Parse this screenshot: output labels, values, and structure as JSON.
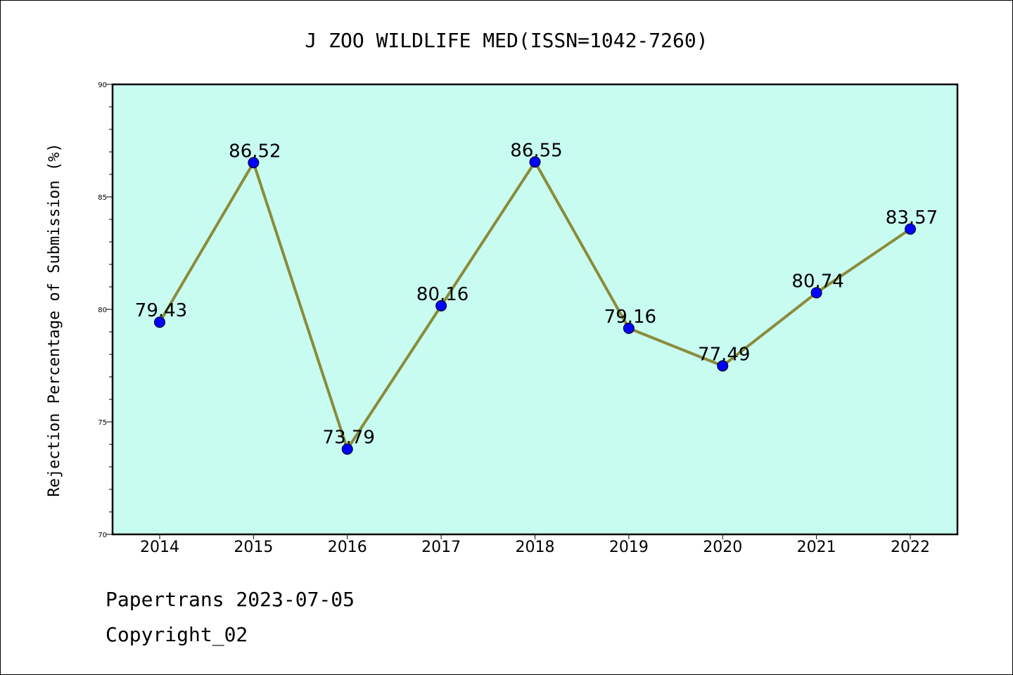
{
  "chart_data": {
    "type": "line",
    "title": "J ZOO WILDLIFE MED(ISSN=1042-7260)",
    "ylabel": "Rejection Percentage of Submission (%)",
    "xlabel": "",
    "categories": [
      "2014",
      "2015",
      "2016",
      "2017",
      "2018",
      "2019",
      "2020",
      "2021",
      "2022"
    ],
    "series": [
      {
        "values": [
          79.43,
          86.52,
          73.79,
          80.16,
          86.55,
          79.16,
          77.49,
          80.74,
          83.57
        ],
        "labels": [
          "79.43",
          "86.52",
          "73.79",
          "80.16",
          "86.55",
          "79.16",
          "77.49",
          "80.74",
          "83.57"
        ]
      }
    ],
    "ylim": [
      70,
      90
    ],
    "yticks": [
      "70",
      "75",
      "80",
      "85",
      "90"
    ],
    "grid": false,
    "legend": "none",
    "colors": {
      "plot_background": "#c8fcf0",
      "line": "#8b8b3a",
      "marker": "#0000ff"
    }
  },
  "footer": {
    "line1": "Papertrans 2023-07-05",
    "line2": "Copyright_02"
  }
}
